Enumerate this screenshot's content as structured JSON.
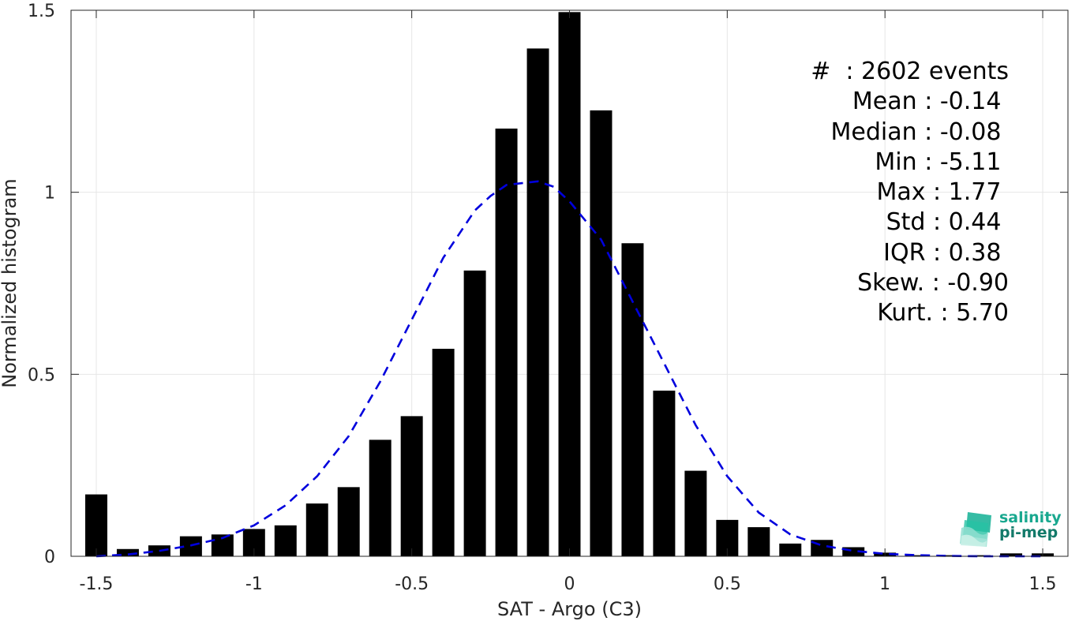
{
  "chart_data": {
    "type": "bar",
    "xlabel": "SAT - Argo (C3)",
    "ylabel": "Normalized histogram",
    "xlim": [
      -1.58,
      1.58
    ],
    "ylim": [
      0,
      1.5
    ],
    "xticks": [
      -1.5,
      -1,
      -0.5,
      0,
      0.5,
      1,
      1.5
    ],
    "xtick_labels": [
      "-1.5",
      "-1",
      "-0.5",
      "0",
      "0.5",
      "1",
      "1.5"
    ],
    "yticks": [
      0,
      0.5,
      1,
      1.5
    ],
    "ytick_labels": [
      "0",
      "0.5",
      "1",
      "1.5"
    ],
    "grid": true,
    "bar_color": "#000000",
    "bar_width": 0.07,
    "bars": {
      "x": [
        -1.5,
        -1.4,
        -1.3,
        -1.2,
        -1.1,
        -1.0,
        -0.9,
        -0.8,
        -0.7,
        -0.6,
        -0.5,
        -0.4,
        -0.3,
        -0.2,
        -0.1,
        0.0,
        0.1,
        0.2,
        0.3,
        0.4,
        0.5,
        0.6,
        0.7,
        0.8,
        0.9,
        1.0,
        1.1,
        1.2,
        1.3,
        1.4,
        1.5
      ],
      "values": [
        0.17,
        0.02,
        0.03,
        0.055,
        0.06,
        0.075,
        0.085,
        0.145,
        0.19,
        0.32,
        0.385,
        0.57,
        0.785,
        1.175,
        1.395,
        1.495,
        1.225,
        0.86,
        0.455,
        0.235,
        0.1,
        0.08,
        0.035,
        0.045,
        0.025,
        0.01,
        0.003,
        0.003,
        0.003,
        0.008,
        0.008
      ]
    },
    "fit_curve": {
      "style": "dashed",
      "color": "#0000dd",
      "x": [
        -1.5,
        -1.4,
        -1.3,
        -1.2,
        -1.1,
        -1.0,
        -0.9,
        -0.8,
        -0.7,
        -0.6,
        -0.5,
        -0.4,
        -0.3,
        -0.25,
        -0.2,
        -0.15,
        -0.1,
        -0.05,
        0.0,
        0.1,
        0.2,
        0.3,
        0.4,
        0.5,
        0.6,
        0.7,
        0.8,
        0.9,
        1.0,
        1.1,
        1.2,
        1.3,
        1.4,
        1.5
      ],
      "y": [
        0.0,
        0.005,
        0.015,
        0.03,
        0.05,
        0.085,
        0.14,
        0.22,
        0.33,
        0.48,
        0.65,
        0.82,
        0.95,
        0.99,
        1.02,
        1.025,
        1.03,
        1.015,
        0.975,
        0.87,
        0.7,
        0.53,
        0.36,
        0.22,
        0.12,
        0.06,
        0.03,
        0.015,
        0.007,
        0.003,
        0.001,
        0.0,
        0.0,
        0.0
      ]
    },
    "stats": [
      "#  : 2602 events",
      "Mean : -0.14 ",
      "Median : -0.08 ",
      "Min : -5.11 ",
      "Max : 1.77 ",
      "Std : 0.44 ",
      "IQR : 0.38 ",
      "Skew. : -0.90",
      "Kurt. : 5.70"
    ]
  },
  "logo": {
    "line1": "salinity",
    "line2": "pi-mep",
    "icon": "salinity-wave-logo-icon",
    "color": "#19a88f"
  }
}
